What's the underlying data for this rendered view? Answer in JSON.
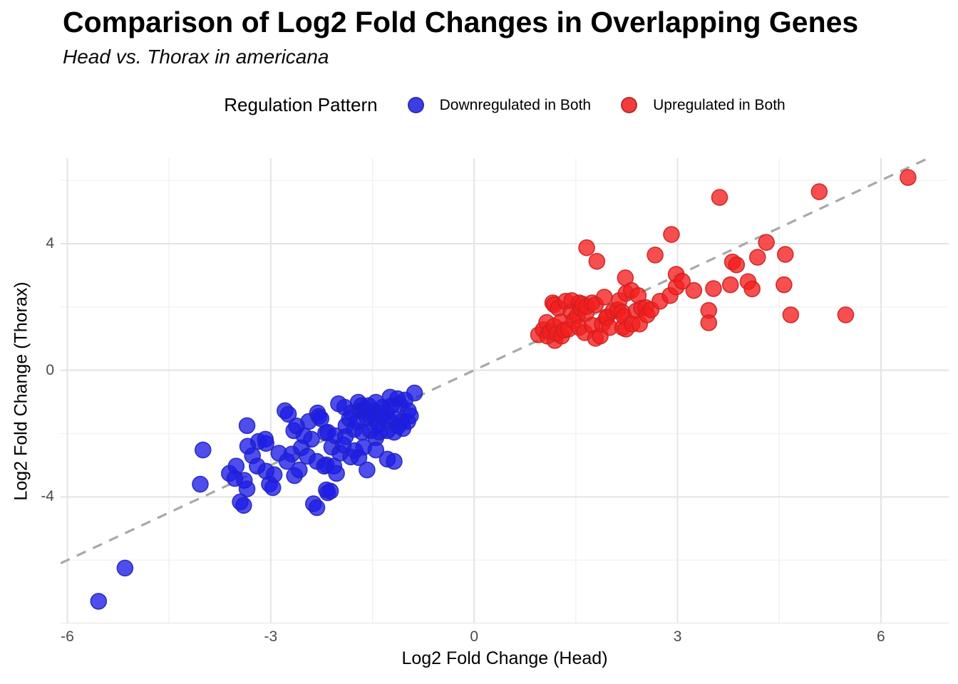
{
  "header": {
    "title": "Comparison of Log2 Fold Changes in Overlapping Genes",
    "subtitle": "Head vs. Thorax in americana"
  },
  "legend": {
    "title": "Regulation Pattern",
    "items": [
      {
        "label": "Downregulated in Both",
        "color": "#3d3de8"
      },
      {
        "label": "Upregulated in Both",
        "color": "#f23c3c"
      }
    ]
  },
  "axes": {
    "x_label": "Log2 Fold Change (Head)",
    "y_label": "Log2 Fold Change (Thorax)",
    "x_tick_labels": [
      "-6",
      "-3",
      "0",
      "3",
      "6"
    ],
    "y_tick_labels": [
      "-4",
      "0",
      "4"
    ]
  },
  "chart_data": {
    "type": "scatter",
    "title": "Comparison of Log2 Fold Changes in Overlapping Genes",
    "subtitle": "Head vs. Thorax in americana",
    "xlabel": "Log2 Fold Change (Head)",
    "ylabel": "Log2 Fold Change (Thorax)",
    "xlim": [
      -6.1,
      7.0
    ],
    "ylim": [
      -8.0,
      6.7
    ],
    "x_ticks": [
      -6,
      -3,
      0,
      3,
      6
    ],
    "y_ticks": [
      -4,
      0,
      4
    ],
    "x_grid_major": [
      -6,
      -3,
      0,
      3,
      6
    ],
    "y_grid_major": [
      -8,
      -4,
      0,
      4
    ],
    "x_minor": [
      -4.5,
      -1.5,
      1.5,
      4.5
    ],
    "y_minor": [
      -6,
      -2,
      2,
      6
    ],
    "grid": true,
    "legend_position": "top",
    "reference_line": {
      "type": "identity y=x",
      "style": "dashed",
      "color": "#a8a8a8"
    },
    "series": [
      {
        "name": "Downregulated in Both",
        "color": "#1c1ce8",
        "stroke": "#2323bb",
        "points": [
          [
            -5.54,
            -7.3
          ],
          [
            -5.15,
            -6.25
          ],
          [
            -4.04,
            -3.6
          ],
          [
            -4.0,
            -2.52
          ],
          [
            -3.61,
            -3.26
          ],
          [
            -3.53,
            -3.42
          ],
          [
            -3.51,
            -3.03
          ],
          [
            -3.45,
            -4.16
          ],
          [
            -3.4,
            -4.27
          ],
          [
            -3.39,
            -3.48
          ],
          [
            -3.35,
            -3.75
          ],
          [
            -3.35,
            -1.75
          ],
          [
            -3.34,
            -2.4
          ],
          [
            -3.27,
            -2.7
          ],
          [
            -3.2,
            -3.03
          ],
          [
            -3.18,
            -2.25
          ],
          [
            -3.08,
            -2.18
          ],
          [
            -3.07,
            -2.31
          ],
          [
            -3.07,
            -3.19
          ],
          [
            -3.02,
            -3.6
          ],
          [
            -2.97,
            -3.71
          ],
          [
            -2.95,
            -3.3
          ],
          [
            -2.88,
            -2.62
          ],
          [
            -2.79,
            -1.28
          ],
          [
            -2.76,
            -2.88
          ],
          [
            -2.74,
            -1.39
          ],
          [
            -2.69,
            -2.65
          ],
          [
            -2.66,
            -1.91
          ],
          [
            -2.65,
            -3.33
          ],
          [
            -2.62,
            -1.76
          ],
          [
            -2.58,
            -3.15
          ],
          [
            -2.55,
            -2.45
          ],
          [
            -2.51,
            -2.07
          ],
          [
            -2.46,
            -2.72
          ],
          [
            -2.44,
            -1.62
          ],
          [
            -2.4,
            -2.18
          ],
          [
            -2.37,
            -4.22
          ],
          [
            -2.32,
            -2.88
          ],
          [
            -2.32,
            -4.34
          ],
          [
            -2.31,
            -1.35
          ],
          [
            -2.29,
            -1.46
          ],
          [
            -2.26,
            -1.53
          ],
          [
            -2.21,
            -3.03
          ],
          [
            -2.19,
            -1.98
          ],
          [
            -2.18,
            -3.78
          ],
          [
            -2.18,
            -2.99
          ],
          [
            -2.16,
            -1.96
          ],
          [
            -2.16,
            -3.87
          ],
          [
            -2.12,
            -3.82
          ],
          [
            -2.1,
            -2.43
          ],
          [
            -2.07,
            -3.03
          ],
          [
            -2.05,
            -2.07
          ],
          [
            -2.03,
            -3.26
          ],
          [
            -2.0,
            -1.06
          ],
          [
            -1.98,
            -2.62
          ],
          [
            -1.93,
            -2.36
          ],
          [
            -1.91,
            -1.17
          ],
          [
            -1.9,
            -2.1
          ],
          [
            -1.89,
            -1.75
          ],
          [
            -1.84,
            -1.53
          ],
          [
            -1.82,
            -2.74
          ],
          [
            -1.81,
            -1.35
          ],
          [
            -1.77,
            -1.87
          ],
          [
            -1.76,
            -2.54
          ],
          [
            -1.72,
            -1.62
          ],
          [
            -1.71,
            -1.01
          ],
          [
            -1.7,
            -2.76
          ],
          [
            -1.68,
            -1.28
          ],
          [
            -1.66,
            -1.12
          ],
          [
            -1.65,
            -1.96
          ],
          [
            -1.63,
            -2.43
          ],
          [
            -1.62,
            -1.25
          ],
          [
            -1.58,
            -3.15
          ],
          [
            -1.58,
            -1.51
          ],
          [
            -1.56,
            -1.12
          ],
          [
            -1.55,
            -1.4
          ],
          [
            -1.53,
            -1.91
          ],
          [
            -1.49,
            -1.28
          ],
          [
            -1.47,
            -1.53
          ],
          [
            -1.45,
            -1.01
          ],
          [
            -1.45,
            -2.13
          ],
          [
            -1.45,
            -2.52
          ],
          [
            -1.42,
            -1.73
          ],
          [
            -1.4,
            -1.96
          ],
          [
            -1.37,
            -1.46
          ],
          [
            -1.35,
            -1.17
          ],
          [
            -1.3,
            -1.35
          ],
          [
            -1.28,
            -1.91
          ],
          [
            -1.28,
            -2.81
          ],
          [
            -1.26,
            -1.57
          ],
          [
            -1.24,
            -0.85
          ],
          [
            -1.22,
            -1.12
          ],
          [
            -1.18,
            -1.53
          ],
          [
            -1.18,
            -1.96
          ],
          [
            -1.18,
            -2.88
          ],
          [
            -1.13,
            -0.9
          ],
          [
            -1.12,
            -1.76
          ],
          [
            -1.1,
            -1.08
          ],
          [
            -1.07,
            -1.62
          ],
          [
            -1.05,
            -1.84
          ],
          [
            -1.02,
            -0.94
          ],
          [
            -0.98,
            -1.62
          ],
          [
            -0.97,
            -1.28
          ],
          [
            -0.94,
            -1.44
          ],
          [
            -0.88,
            -0.72
          ]
        ]
      },
      {
        "name": "Upregulated in Both",
        "color": "#f51d1d",
        "stroke": "#cc2020",
        "points": [
          [
            0.95,
            1.12
          ],
          [
            1.02,
            1.28
          ],
          [
            1.07,
            1.51
          ],
          [
            1.08,
            1.08
          ],
          [
            1.12,
            1.22
          ],
          [
            1.16,
            2.13
          ],
          [
            1.18,
            1.39
          ],
          [
            1.18,
            2.07
          ],
          [
            1.19,
            0.94
          ],
          [
            1.22,
            1.16
          ],
          [
            1.24,
            1.96
          ],
          [
            1.28,
            1.53
          ],
          [
            1.29,
            1.08
          ],
          [
            1.33,
            1.27
          ],
          [
            1.35,
            2.18
          ],
          [
            1.39,
            1.3
          ],
          [
            1.43,
            1.85
          ],
          [
            1.44,
            2.2
          ],
          [
            1.47,
            1.57
          ],
          [
            1.52,
            1.72
          ],
          [
            1.55,
            1.35
          ],
          [
            1.55,
            2.13
          ],
          [
            1.58,
            1.96
          ],
          [
            1.6,
            2.09
          ],
          [
            1.63,
            1.19
          ],
          [
            1.65,
            1.8
          ],
          [
            1.66,
            2.02
          ],
          [
            1.66,
            3.87
          ],
          [
            1.74,
            1.42
          ],
          [
            1.74,
            2.13
          ],
          [
            1.79,
            1.01
          ],
          [
            1.79,
            2.07
          ],
          [
            1.81,
            3.44
          ],
          [
            1.86,
            1.08
          ],
          [
            1.89,
            1.46
          ],
          [
            1.92,
            2.31
          ],
          [
            1.95,
            1.64
          ],
          [
            1.96,
            1.69
          ],
          [
            2.0,
            1.35
          ],
          [
            2.05,
            1.87
          ],
          [
            2.12,
            1.91
          ],
          [
            2.14,
            2.2
          ],
          [
            2.18,
            1.84
          ],
          [
            2.19,
            1.35
          ],
          [
            2.21,
            1.69
          ],
          [
            2.23,
            2.92
          ],
          [
            2.24,
            1.3
          ],
          [
            2.24,
            2.43
          ],
          [
            2.32,
            2.52
          ],
          [
            2.33,
            1.46
          ],
          [
            2.39,
            1.87
          ],
          [
            2.42,
            2.36
          ],
          [
            2.44,
            1.46
          ],
          [
            2.47,
            1.96
          ],
          [
            2.53,
            1.98
          ],
          [
            2.55,
            1.75
          ],
          [
            2.61,
            1.91
          ],
          [
            2.67,
            3.64
          ],
          [
            2.74,
            2.18
          ],
          [
            2.89,
            2.36
          ],
          [
            2.91,
            4.29
          ],
          [
            2.98,
            2.63
          ],
          [
            2.98,
            3.03
          ],
          [
            3.07,
            2.81
          ],
          [
            3.24,
            2.52
          ],
          [
            3.46,
            1.89
          ],
          [
            3.46,
            1.5
          ],
          [
            3.53,
            2.58
          ],
          [
            3.62,
            5.46
          ],
          [
            3.78,
            2.7
          ],
          [
            3.81,
            3.42
          ],
          [
            3.87,
            3.33
          ],
          [
            4.04,
            2.8
          ],
          [
            4.1,
            2.57
          ],
          [
            4.18,
            3.57
          ],
          [
            4.31,
            4.04
          ],
          [
            4.57,
            2.7
          ],
          [
            4.59,
            3.66
          ],
          [
            4.67,
            1.75
          ],
          [
            5.09,
            5.64
          ],
          [
            5.48,
            1.75
          ],
          [
            6.4,
            6.09
          ]
        ]
      }
    ]
  }
}
